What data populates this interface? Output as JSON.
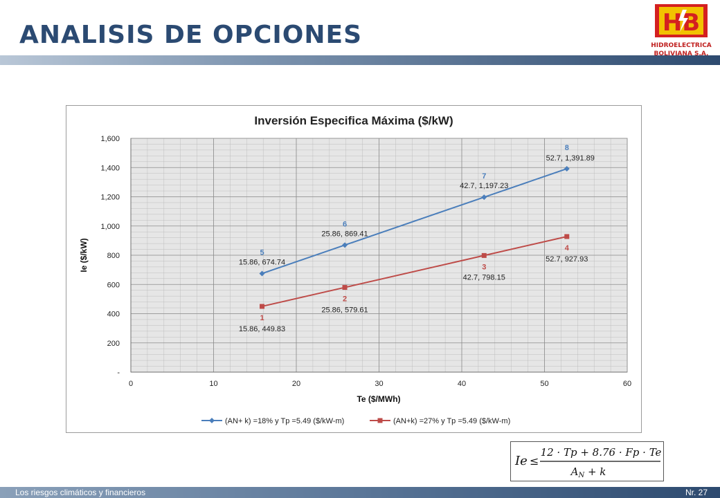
{
  "slide": {
    "title": "ANALISIS DE OPCIONES"
  },
  "logo": {
    "letters": "HB",
    "line1": "HIDROELECTRICA",
    "line2": "BOLIVIANA S.A."
  },
  "footer": {
    "left": "Los riesgos climáticos y financieros",
    "right": "Nr. 27"
  },
  "formula": {
    "lhs": "Ie",
    "relation": "≤",
    "numerator": "12 · Tp + 8.76 · Fp · Te",
    "denominator_base": "A",
    "denominator_sub": "N",
    "denominator_rest": " + k"
  },
  "chart_data": {
    "type": "line",
    "title": "Inversión Especifica Máxima ($/kW)",
    "xlabel": "Te ($/MWh)",
    "ylabel": "Ie ($/kW)",
    "xlim": [
      0,
      60
    ],
    "ylim": [
      0,
      1600
    ],
    "x_ticks": [
      0,
      10,
      20,
      30,
      40,
      50,
      60
    ],
    "y_ticks": [
      0,
      200,
      400,
      600,
      800,
      1000,
      1200,
      1400,
      1600
    ],
    "y_tick_labels": [
      "-",
      "200",
      "400",
      "600",
      "800",
      "1,000",
      "1,200",
      "1,400",
      "1,600"
    ],
    "grid": true,
    "legend_position": "bottom",
    "series": [
      {
        "name": "(AN+ k) =18% y Tp =5.49 ($/kW-m)",
        "color": "#4a7ebb",
        "marker": "diamond",
        "points": [
          {
            "x": 15.86,
            "y": 674.74,
            "label": "15.86, 674.74",
            "id": "5"
          },
          {
            "x": 25.86,
            "y": 869.41,
            "label": "25.86, 869.41",
            "id": "6"
          },
          {
            "x": 42.7,
            "y": 1197.23,
            "label": "42.7, 1,197.23",
            "id": "7"
          },
          {
            "x": 52.7,
            "y": 1391.89,
            "label": "52.7, 1,391.89",
            "id": "8"
          }
        ]
      },
      {
        "name": "(AN+k) =27% y Tp =5.49 ($/kW-m)",
        "color": "#be4b48",
        "marker": "square",
        "points": [
          {
            "x": 15.86,
            "y": 449.83,
            "label": "15.86, 449.83",
            "id": "1"
          },
          {
            "x": 25.86,
            "y": 579.61,
            "label": "25.86, 579.61",
            "id": "2"
          },
          {
            "x": 42.7,
            "y": 798.15,
            "label": "42.7, 798.15",
            "id": "3"
          },
          {
            "x": 52.7,
            "y": 927.93,
            "label": "52.7, 927.93",
            "id": "4"
          }
        ]
      }
    ]
  }
}
